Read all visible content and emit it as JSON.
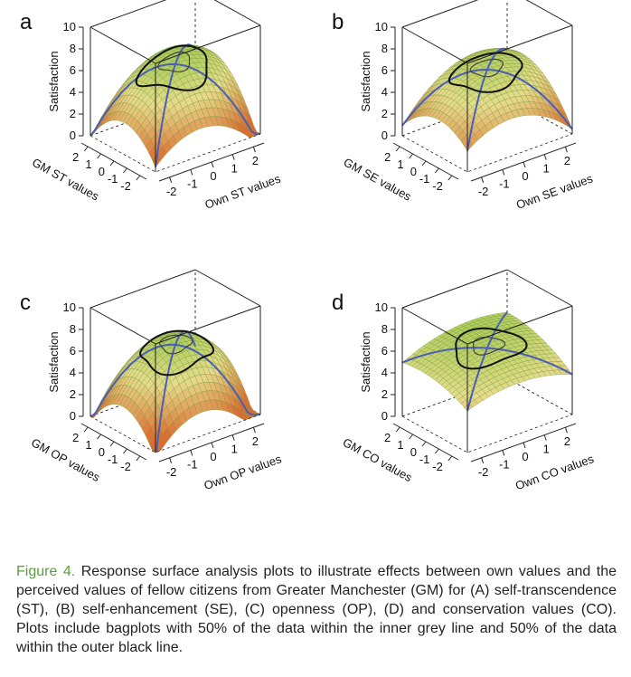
{
  "chart_data": [
    {
      "type": "surface3d",
      "panel_label": "a",
      "zlabel": "Satisfaction",
      "xlabel": "Own ST values",
      "ylabel": "GM ST values",
      "zticks": [
        "0",
        "2",
        "4",
        "6",
        "8",
        "10"
      ],
      "xticks": [
        "-2",
        "-1",
        "0",
        "1",
        "2"
      ],
      "yticks": [
        "-2",
        "-1",
        "0",
        "1",
        "2"
      ],
      "zlim": [
        0,
        10
      ],
      "xlim": [
        -2.5,
        2.5
      ],
      "ylim": [
        -2.5,
        2.5
      ],
      "surface_coefficients": {
        "intercept": 6.5,
        "x": 0.3,
        "y": 0.5,
        "x2": -0.45,
        "xy": 0.25,
        "y2": -0.45
      }
    },
    {
      "type": "surface3d",
      "panel_label": "b",
      "zlabel": "Satisfaction",
      "xlabel": "Own SE values",
      "ylabel": "GM SE values",
      "zticks": [
        "0",
        "2",
        "4",
        "6",
        "8",
        "10"
      ],
      "xticks": [
        "-2",
        "-1",
        "0",
        "1",
        "2"
      ],
      "yticks": [
        "-2",
        "-1",
        "0",
        "1",
        "2"
      ],
      "zlim": [
        0,
        10
      ],
      "xlim": [
        -2.5,
        2.5
      ],
      "ylim": [
        -2.5,
        2.5
      ],
      "surface_coefficients": {
        "intercept": 6.0,
        "x": 0.2,
        "y": 0.3,
        "x2": -0.35,
        "xy": 0.2,
        "y2": -0.3
      }
    },
    {
      "type": "surface3d",
      "panel_label": "c",
      "zlabel": "Satisfaction",
      "xlabel": "Own OP values",
      "ylabel": "GM OP values",
      "zticks": [
        "0",
        "2",
        "4",
        "6",
        "8",
        "10"
      ],
      "xticks": [
        "-2",
        "-1",
        "0",
        "1",
        "2"
      ],
      "yticks": [
        "-2",
        "-1",
        "0",
        "1",
        "2"
      ],
      "zlim": [
        0,
        10
      ],
      "xlim": [
        -2.5,
        2.5
      ],
      "ylim": [
        -2.5,
        2.5
      ],
      "surface_coefficients": {
        "intercept": 6.5,
        "x": 0.2,
        "y": 0.5,
        "x2": -0.55,
        "xy": 0.2,
        "y2": -0.5
      }
    },
    {
      "type": "surface3d",
      "panel_label": "d",
      "zlabel": "Satisfaction",
      "xlabel": "Own CO values",
      "ylabel": "GM CO values",
      "zticks": [
        "0",
        "2",
        "4",
        "6",
        "8",
        "10"
      ],
      "xticks": [
        "-2",
        "-1",
        "0",
        "1",
        "2"
      ],
      "yticks": [
        "-2",
        "-1",
        "0",
        "1",
        "2"
      ],
      "zlim": [
        0,
        10
      ],
      "xlim": [
        -2.5,
        2.5
      ],
      "ylim": [
        -2.5,
        2.5
      ],
      "surface_coefficients": {
        "intercept": 6.2,
        "x": 0.1,
        "y": 0.35,
        "x2": -0.15,
        "xy": 0.05,
        "y2": -0.1
      }
    }
  ],
  "colors": {
    "surface_high": "#8cc63f",
    "surface_mid": "#e6dc8c",
    "surface_low": "#dc6c32",
    "mesh": "#7a9a3a",
    "congruence_line": "#4a5fb5",
    "box": "#222222",
    "fig_label": "#5a9e3c"
  },
  "caption": {
    "label": "Figure 4.",
    "text": "Response surface analysis plots to illustrate effects between own values and the perceived values of fellow citizens from Greater Manchester (GM) for (A) self-transcendence (ST), (B) self-enhancement (SE), (C) openness (OP), (D) and conservation values (CO). Plots include bagplots with 50% of the data within the inner grey line and 50% of the data within the outer black line."
  }
}
